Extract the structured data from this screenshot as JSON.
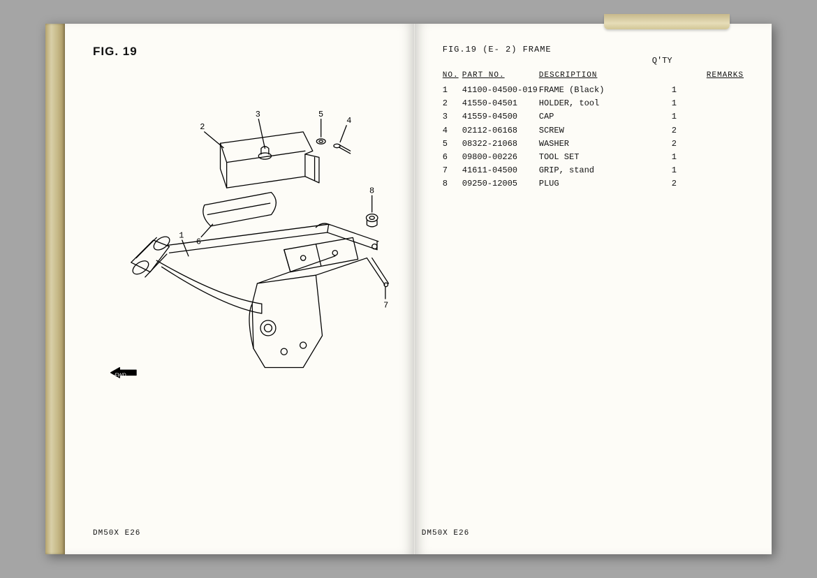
{
  "leftPage": {
    "figTitle": "FIG. 19",
    "footer": "DM50X E26",
    "fwdLabel": "FWD",
    "callouts": [
      "1",
      "2",
      "3",
      "4",
      "5",
      "6",
      "7",
      "8"
    ]
  },
  "rightPage": {
    "header": "FIG.19 (E- 2) FRAME",
    "qtyLabel": "Q'TY",
    "columns": {
      "no": "NO.",
      "part": "PART NO.",
      "desc": "DESCRIPTION",
      "qty": "",
      "remarks": "REMARKS"
    },
    "rows": [
      {
        "no": "1",
        "part": "41100-04500-019",
        "desc": "FRAME (Black)",
        "qty": "1",
        "remarks": ""
      },
      {
        "no": "2",
        "part": "41550-04501",
        "desc": "HOLDER, tool",
        "qty": "1",
        "remarks": ""
      },
      {
        "no": "3",
        "part": "41559-04500",
        "desc": "CAP",
        "qty": "1",
        "remarks": ""
      },
      {
        "no": "4",
        "part": "02112-06168",
        "desc": "SCREW",
        "qty": "2",
        "remarks": ""
      },
      {
        "no": "5",
        "part": "08322-21068",
        "desc": "WASHER",
        "qty": "2",
        "remarks": ""
      },
      {
        "no": "6",
        "part": "09800-00226",
        "desc": "TOOL SET",
        "qty": "1",
        "remarks": ""
      },
      {
        "no": "7",
        "part": "41611-04500",
        "desc": "GRIP, stand",
        "qty": "1",
        "remarks": ""
      },
      {
        "no": "8",
        "part": "09250-12005",
        "desc": "PLUG",
        "qty": "2",
        "remarks": ""
      }
    ],
    "footer": "DM50X E26"
  },
  "style": {
    "pageBg": "#fdfcf7",
    "ink": "#111111",
    "bookShadow": "rgba(0,0,0,0.4)",
    "font": "Courier New",
    "titleFont": "Arial",
    "titleSizePt": 13,
    "bodySizePt": 9,
    "diagramStroke": "#000000",
    "diagramStrokeWidth": 1.4
  }
}
